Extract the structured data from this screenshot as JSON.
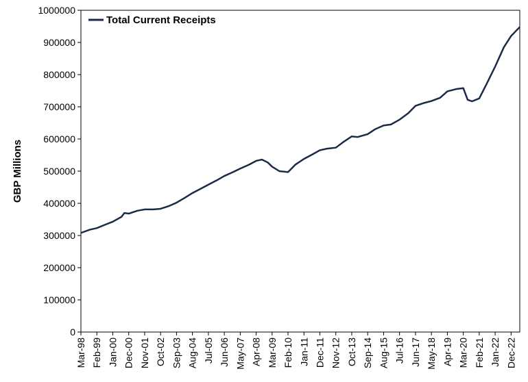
{
  "chart_data": {
    "type": "line",
    "title": "",
    "xlabel": "",
    "ylabel": "GBP Millions",
    "ylim": [
      0,
      1000000
    ],
    "yticks": [
      "0",
      "100000",
      "200000",
      "300000",
      "400000",
      "500000",
      "600000",
      "700000",
      "800000",
      "900000",
      "1000000"
    ],
    "grid": false,
    "legend_position": "top-left",
    "colors": {
      "line": "#1b2a47",
      "axis": "#000000"
    },
    "x_tick_labels": [
      "Mar-98",
      "Feb-99",
      "Jan-00",
      "Dec-00",
      "Nov-01",
      "Oct-02",
      "Sep-03",
      "Aug-04",
      "Jul-05",
      "Jun-06",
      "May-07",
      "Apr-08",
      "Mar-09",
      "Feb-10",
      "Jan-11",
      "Dec-11",
      "Nov-12",
      "Oct-13",
      "Sep-14",
      "Aug-15",
      "Jul-16",
      "Jun-17",
      "May-18",
      "Apr-19",
      "Mar-20",
      "Feb-21",
      "Jan-22",
      "Dec-22"
    ],
    "x_range": [
      "Mar-98",
      "Jun-23"
    ],
    "series": [
      {
        "name": "Total Current Receipts",
        "points": [
          [
            "Mar-98",
            308000
          ],
          [
            "Sep-98",
            318000
          ],
          [
            "Feb-99",
            323000
          ],
          [
            "Aug-99",
            334000
          ],
          [
            "Jan-00",
            343000
          ],
          [
            "Jul-00",
            358000
          ],
          [
            "Sep-00",
            370000
          ],
          [
            "Dec-00",
            368000
          ],
          [
            "Jun-01",
            377000
          ],
          [
            "Nov-01",
            381000
          ],
          [
            "May-02",
            381000
          ],
          [
            "Oct-02",
            383000
          ],
          [
            "Apr-03",
            392000
          ],
          [
            "Sep-03",
            402000
          ],
          [
            "Mar-04",
            418000
          ],
          [
            "Aug-04",
            432000
          ],
          [
            "Feb-05",
            446000
          ],
          [
            "Jul-05",
            458000
          ],
          [
            "Jan-06",
            472000
          ],
          [
            "Jun-06",
            485000
          ],
          [
            "Dec-06",
            497000
          ],
          [
            "May-07",
            508000
          ],
          [
            "Nov-07",
            520000
          ],
          [
            "Apr-08",
            532000
          ],
          [
            "Aug-08",
            536000
          ],
          [
            "Dec-08",
            527000
          ],
          [
            "Mar-09",
            514000
          ],
          [
            "Aug-09",
            500000
          ],
          [
            "Feb-10",
            497000
          ],
          [
            "Jul-10",
            520000
          ],
          [
            "Jan-11",
            538000
          ],
          [
            "Jun-11",
            550000
          ],
          [
            "Dec-11",
            565000
          ],
          [
            "May-12",
            570000
          ],
          [
            "Nov-12",
            573000
          ],
          [
            "Apr-13",
            590000
          ],
          [
            "Oct-13",
            608000
          ],
          [
            "Feb-14",
            606000
          ],
          [
            "Sep-14",
            615000
          ],
          [
            "Feb-15",
            630000
          ],
          [
            "Aug-15",
            642000
          ],
          [
            "Jan-16",
            645000
          ],
          [
            "Jul-16",
            660000
          ],
          [
            "Jan-17",
            680000
          ],
          [
            "Jun-17",
            703000
          ],
          [
            "Dec-17",
            712000
          ],
          [
            "May-18",
            718000
          ],
          [
            "Nov-18",
            728000
          ],
          [
            "Apr-19",
            748000
          ],
          [
            "Oct-19",
            755000
          ],
          [
            "Mar-20",
            758000
          ],
          [
            "Jun-20",
            722000
          ],
          [
            "Sep-20",
            717000
          ],
          [
            "Feb-21",
            726000
          ],
          [
            "Jul-21",
            770000
          ],
          [
            "Jan-22",
            825000
          ],
          [
            "Jul-22",
            885000
          ],
          [
            "Dec-22",
            920000
          ],
          [
            "Jun-23",
            948000
          ]
        ]
      }
    ]
  }
}
